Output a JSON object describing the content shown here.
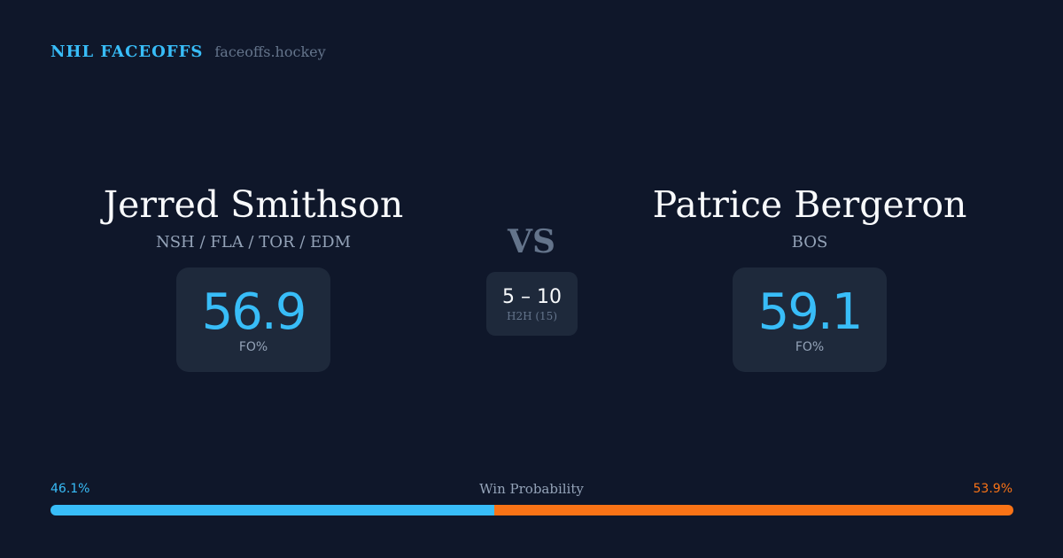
{
  "brand": {
    "name": "NHL FACEOFFS",
    "url": "faceoffs.hockey"
  },
  "players": [
    {
      "name": "Jerred Smithson",
      "teams": "NSH / FLA / TOR / EDM",
      "fo_pct": "56.9",
      "fo_label": "FO%"
    },
    {
      "name": "Patrice Bergeron",
      "teams": "BOS",
      "fo_pct": "59.1",
      "fo_label": "FO%"
    }
  ],
  "vs": "VS",
  "h2h": {
    "score": "5 – 10",
    "label": "H2H (15)"
  },
  "win_probability": {
    "title": "Win Probability",
    "left_label": "46.1%",
    "right_label": "53.9%",
    "left_value": 46.1,
    "right_value": 53.9,
    "left_color": "#38bdf8",
    "right_color": "#f97316"
  }
}
